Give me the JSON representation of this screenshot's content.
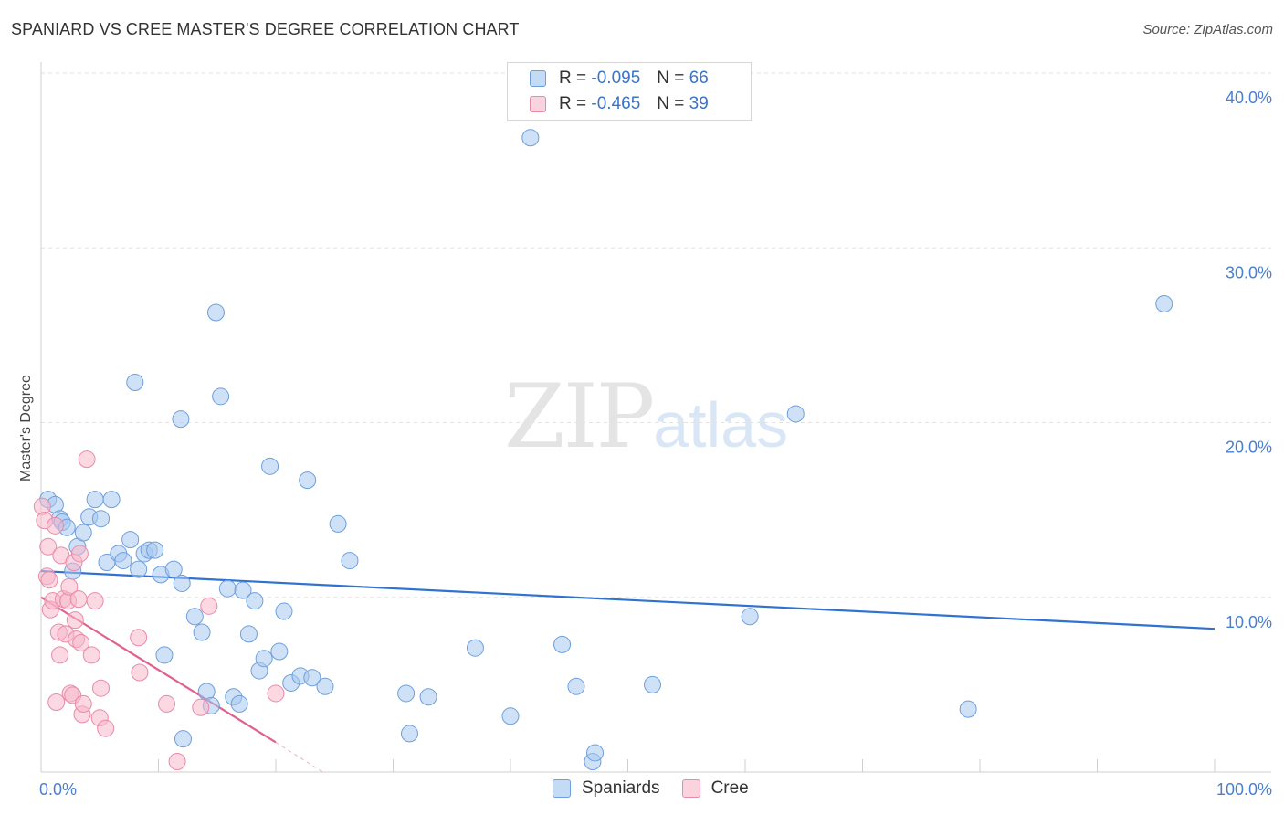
{
  "header": {
    "title": "SPANIARD VS CREE MASTER'S DEGREE CORRELATION CHART",
    "source": "Source: ZipAtlas.com"
  },
  "watermark": {
    "zip": "ZIP",
    "atlas": "atlas"
  },
  "legend": {
    "rows": [
      {
        "r_label": "R =",
        "r_value": "-0.095",
        "n_label": "N =",
        "n_value": "66",
        "color": "#a8c8f0"
      },
      {
        "r_label": "R =",
        "r_value": "-0.465",
        "n_label": "N =",
        "n_value": "39",
        "color": "#f7b8cb"
      }
    ]
  },
  "bottom_legend": {
    "spaniards": "Spaniards",
    "cree": "Cree"
  },
  "colors": {
    "spaniard_fill": "#a8c8f0",
    "spaniard_stroke": "#6d9fdc",
    "spaniard_line": "#2f72d0",
    "cree_fill": "#f7b8cb",
    "cree_stroke": "#e98aa9",
    "cree_line": "#e0608e",
    "grid": "#e2e2e2",
    "tick_text": "#4a7fd0"
  },
  "chart_data": {
    "type": "scatter",
    "title": "SPANIARD VS CREE MASTER'S DEGREE CORRELATION CHART",
    "xlabel": "",
    "ylabel": "Master's Degree",
    "xlim": [
      0,
      100
    ],
    "ylim": [
      0,
      40
    ],
    "x_tick_labels": [
      "0.0%",
      "100.0%"
    ],
    "y_ticks": [
      10,
      20,
      30,
      40
    ],
    "y_tick_labels": [
      "10.0%",
      "20.0%",
      "30.0%",
      "40.0%"
    ],
    "series": [
      {
        "name": "Spaniards",
        "r": -0.095,
        "n": 66,
        "trend": {
          "x0": 0,
          "y0": 11.5,
          "x1": 100,
          "y1": 8.2
        },
        "points": [
          [
            0.6,
            15.6
          ],
          [
            1.2,
            15.3
          ],
          [
            1.6,
            14.5
          ],
          [
            1.8,
            14.3
          ],
          [
            2.2,
            14.0
          ],
          [
            2.7,
            11.5
          ],
          [
            3.1,
            12.9
          ],
          [
            3.6,
            13.7
          ],
          [
            4.1,
            14.6
          ],
          [
            4.6,
            15.6
          ],
          [
            5.1,
            14.5
          ],
          [
            5.6,
            12.0
          ],
          [
            6.0,
            15.6
          ],
          [
            6.6,
            12.5
          ],
          [
            7.0,
            12.1
          ],
          [
            7.6,
            13.3
          ],
          [
            8.0,
            22.3
          ],
          [
            8.3,
            11.6
          ],
          [
            8.8,
            12.5
          ],
          [
            9.2,
            12.7
          ],
          [
            9.7,
            12.7
          ],
          [
            10.2,
            11.3
          ],
          [
            10.5,
            6.7
          ],
          [
            11.3,
            11.6
          ],
          [
            11.9,
            20.2
          ],
          [
            12.0,
            10.8
          ],
          [
            13.1,
            8.9
          ],
          [
            13.7,
            8.0
          ],
          [
            14.1,
            4.6
          ],
          [
            14.5,
            3.8
          ],
          [
            14.9,
            26.3
          ],
          [
            15.3,
            21.5
          ],
          [
            15.9,
            10.5
          ],
          [
            16.4,
            4.3
          ],
          [
            16.9,
            3.9
          ],
          [
            17.2,
            10.4
          ],
          [
            17.7,
            7.9
          ],
          [
            18.2,
            9.8
          ],
          [
            18.6,
            5.8
          ],
          [
            19.0,
            6.5
          ],
          [
            19.5,
            17.5
          ],
          [
            20.3,
            6.9
          ],
          [
            20.7,
            9.2
          ],
          [
            21.3,
            5.1
          ],
          [
            22.1,
            5.5
          ],
          [
            22.7,
            16.7
          ],
          [
            23.1,
            5.4
          ],
          [
            24.2,
            4.9
          ],
          [
            25.3,
            14.2
          ],
          [
            26.3,
            12.1
          ],
          [
            31.1,
            4.5
          ],
          [
            31.4,
            2.2
          ],
          [
            33.0,
            4.3
          ],
          [
            37.0,
            7.1
          ],
          [
            40.0,
            3.2
          ],
          [
            41.7,
            36.3
          ],
          [
            44.4,
            7.3
          ],
          [
            45.6,
            4.9
          ],
          [
            47.0,
            0.6
          ],
          [
            47.2,
            1.1
          ],
          [
            52.1,
            5.0
          ],
          [
            60.4,
            8.9
          ],
          [
            64.3,
            20.5
          ],
          [
            79.0,
            3.6
          ],
          [
            95.7,
            26.8
          ],
          [
            12.1,
            1.9
          ]
        ]
      },
      {
        "name": "Cree",
        "r": -0.465,
        "n": 39,
        "trend": {
          "x0": 0,
          "y0": 10.0,
          "x1": 20,
          "y1": 1.7,
          "dashed_to": {
            "x": 24,
            "y": 0
          }
        },
        "points": [
          [
            0.1,
            15.2
          ],
          [
            0.3,
            14.4
          ],
          [
            0.5,
            11.2
          ],
          [
            0.6,
            12.9
          ],
          [
            0.7,
            11.0
          ],
          [
            0.8,
            9.3
          ],
          [
            1.0,
            9.8
          ],
          [
            1.2,
            14.1
          ],
          [
            1.3,
            4.0
          ],
          [
            1.5,
            8.0
          ],
          [
            1.6,
            6.7
          ],
          [
            1.7,
            12.4
          ],
          [
            1.9,
            9.9
          ],
          [
            2.1,
            7.9
          ],
          [
            2.3,
            9.8
          ],
          [
            2.4,
            10.6
          ],
          [
            2.5,
            4.5
          ],
          [
            2.7,
            4.4
          ],
          [
            2.8,
            12.0
          ],
          [
            2.9,
            8.7
          ],
          [
            3.0,
            7.6
          ],
          [
            3.2,
            9.9
          ],
          [
            3.3,
            12.5
          ],
          [
            3.4,
            7.4
          ],
          [
            3.5,
            3.3
          ],
          [
            3.6,
            3.9
          ],
          [
            3.9,
            17.9
          ],
          [
            4.3,
            6.7
          ],
          [
            4.6,
            9.8
          ],
          [
            5.0,
            3.1
          ],
          [
            5.1,
            4.8
          ],
          [
            5.5,
            2.5
          ],
          [
            8.3,
            7.7
          ],
          [
            8.4,
            5.7
          ],
          [
            10.7,
            3.9
          ],
          [
            11.6,
            0.6
          ],
          [
            13.6,
            3.7
          ],
          [
            14.3,
            9.5
          ],
          [
            20.0,
            4.5
          ]
        ]
      }
    ]
  }
}
